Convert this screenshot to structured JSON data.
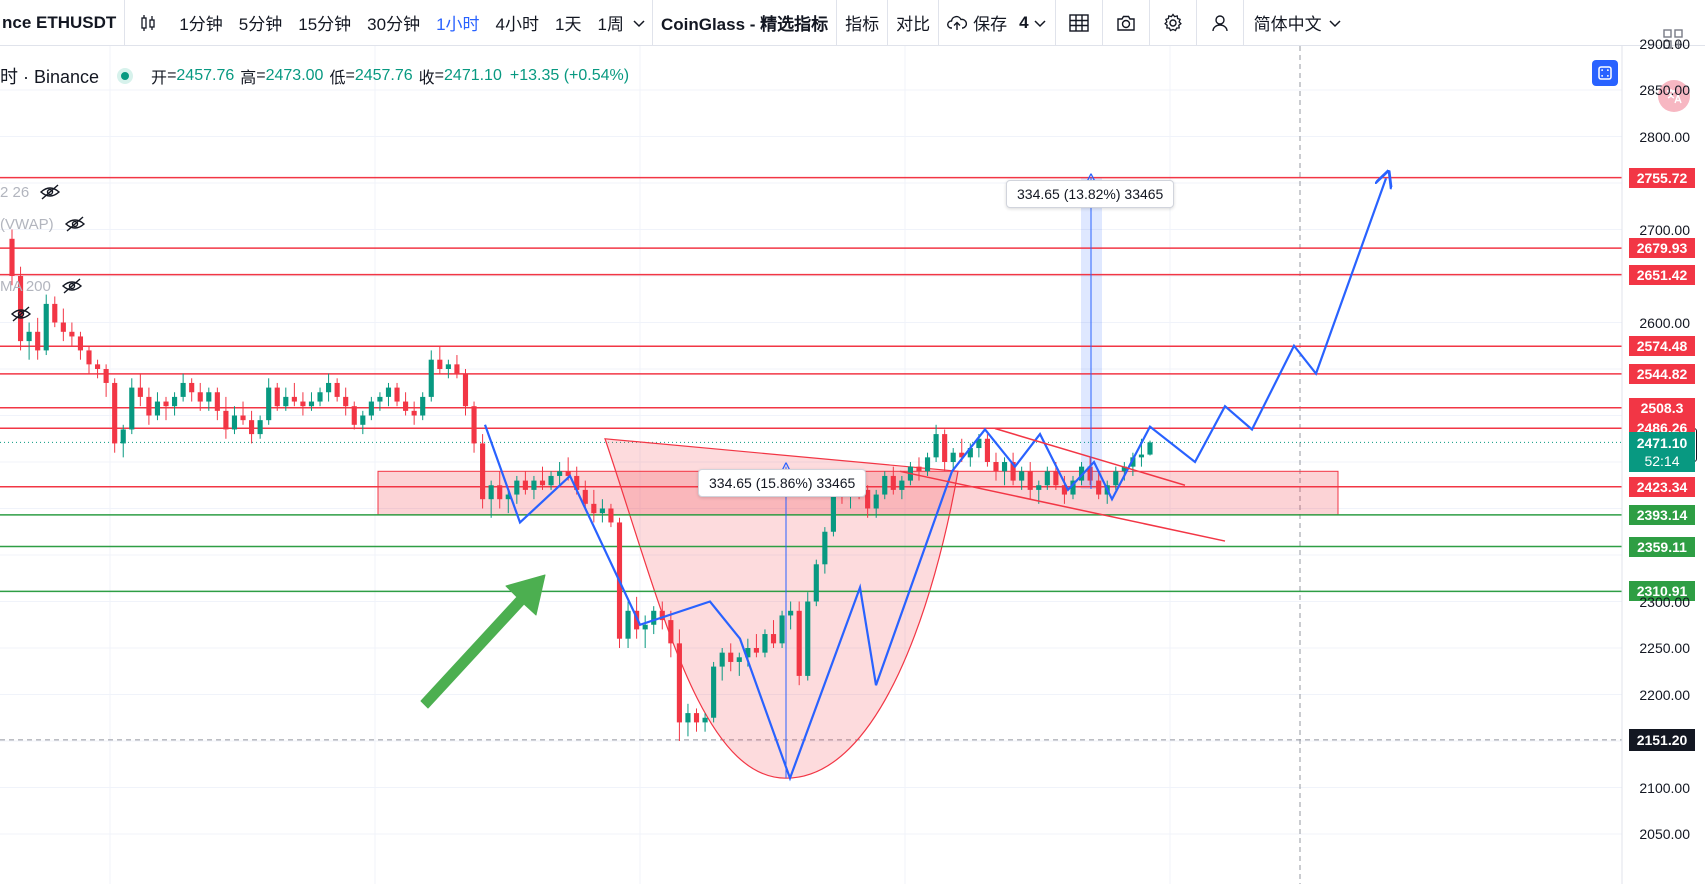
{
  "toolbar": {
    "symbol": "nce ETHUSDT",
    "intervals": [
      "1分钟",
      "5分钟",
      "15分钟",
      "30分钟",
      "1小时",
      "4小时",
      "1天",
      "1周"
    ],
    "active_interval": "1小时",
    "indicator_source": "CoinGlass - 精选指标",
    "indicators_label": "指标",
    "compare_label": "对比",
    "save_label": "保存",
    "layout_count": "4",
    "language": "简体中文"
  },
  "legend": {
    "title": "时 · Binance",
    "open_label": "开",
    "open": "2457.76",
    "high_label": "高",
    "high": "2473.00",
    "low_label": "低",
    "low": "2457.76",
    "close_label": "收",
    "close": "2471.10",
    "change": "+13.35 (+0.54%)"
  },
  "indicators": [
    {
      "label": "2 26"
    },
    {
      "label": "(VWAP)"
    },
    {
      "label": "MA 200"
    },
    {
      "label": ""
    }
  ],
  "colors": {
    "up": "#089981",
    "down": "#f23645",
    "drawing_blue": "#2962ff",
    "resistance_red": "#f23645",
    "support_green": "#2e9e44",
    "arrow_green": "#4caf50"
  },
  "chart_data": {
    "type": "candlestick",
    "symbol": "ETHUSDT",
    "exchange": "Binance",
    "interval": "1小时",
    "ylim": [
      2040,
      2915
    ],
    "y_ticks": [
      2050,
      2100,
      2150,
      2200,
      2250,
      2300,
      2350,
      2400,
      2450,
      2500,
      2550,
      2600,
      2650,
      2700,
      2750,
      2800,
      2850,
      2900
    ],
    "y_tick_labels": [
      "2050.00",
      "2100.00",
      "",
      "2200.00",
      "2250.00",
      "2300.00",
      "",
      "",
      "",
      "",
      "",
      "2600.00",
      "",
      "2700.00",
      "",
      "2800.00",
      "2850.00",
      "2900.00"
    ],
    "current_price": "2471.10",
    "countdown": "52:14",
    "crosshair_price": "2151.20",
    "horizontal_levels": [
      {
        "price": 2755.72,
        "label": "2755.72",
        "kind": "resistance"
      },
      {
        "price": 2679.93,
        "label": "2679.93",
        "kind": "resistance"
      },
      {
        "price": 2651.42,
        "label": "2651.42",
        "kind": "resistance"
      },
      {
        "price": 2574.48,
        "label": "2574.48",
        "kind": "resistance"
      },
      {
        "price": 2544.82,
        "label": "2544.82",
        "kind": "resistance"
      },
      {
        "price": 2508.3,
        "label": "2508.3",
        "kind": "resistance"
      },
      {
        "price": 2486.26,
        "label": "2486.26",
        "kind": "resistance"
      },
      {
        "price": 2423.34,
        "label": "2423.34",
        "kind": "resistance"
      },
      {
        "price": 2393.14,
        "label": "2393.14",
        "kind": "support"
      },
      {
        "price": 2359.11,
        "label": "2359.11",
        "kind": "support"
      },
      {
        "price": 2310.91,
        "label": "2310.91",
        "kind": "support"
      }
    ],
    "measurements": [
      {
        "text": "334.65 (15.86%) 33465"
      },
      {
        "text": "334.65 (13.82%) 33465"
      }
    ],
    "candles": [
      [
        2690,
        2700,
        2640,
        2650
      ],
      [
        2650,
        2660,
        2570,
        2580
      ],
      [
        2580,
        2600,
        2560,
        2590
      ],
      [
        2590,
        2605,
        2560,
        2570
      ],
      [
        2570,
        2630,
        2565,
        2620
      ],
      [
        2620,
        2628,
        2595,
        2600
      ],
      [
        2600,
        2615,
        2580,
        2590
      ],
      [
        2590,
        2600,
        2575,
        2585
      ],
      [
        2585,
        2590,
        2560,
        2570
      ],
      [
        2570,
        2575,
        2545,
        2555
      ],
      [
        2555,
        2560,
        2540,
        2550
      ],
      [
        2550,
        2555,
        2520,
        2535
      ],
      [
        2535,
        2540,
        2460,
        2470
      ],
      [
        2470,
        2490,
        2455,
        2485
      ],
      [
        2485,
        2540,
        2480,
        2530
      ],
      [
        2530,
        2545,
        2510,
        2520
      ],
      [
        2520,
        2530,
        2490,
        2500
      ],
      [
        2500,
        2525,
        2495,
        2515
      ],
      [
        2515,
        2520,
        2495,
        2510
      ],
      [
        2510,
        2525,
        2500,
        2520
      ],
      [
        2520,
        2545,
        2515,
        2535
      ],
      [
        2535,
        2540,
        2515,
        2525
      ],
      [
        2525,
        2535,
        2505,
        2515
      ],
      [
        2515,
        2530,
        2505,
        2525
      ],
      [
        2525,
        2530,
        2495,
        2505
      ],
      [
        2505,
        2520,
        2475,
        2485
      ],
      [
        2485,
        2510,
        2480,
        2500
      ],
      [
        2500,
        2515,
        2490,
        2495
      ],
      [
        2495,
        2505,
        2470,
        2480
      ],
      [
        2480,
        2500,
        2475,
        2495
      ],
      [
        2495,
        2540,
        2490,
        2530
      ],
      [
        2530,
        2535,
        2505,
        2510
      ],
      [
        2510,
        2530,
        2505,
        2520
      ],
      [
        2520,
        2535,
        2510,
        2515
      ],
      [
        2515,
        2525,
        2500,
        2510
      ],
      [
        2510,
        2525,
        2505,
        2515
      ],
      [
        2515,
        2530,
        2510,
        2525
      ],
      [
        2525,
        2545,
        2515,
        2535
      ],
      [
        2535,
        2540,
        2515,
        2520
      ],
      [
        2520,
        2530,
        2500,
        2510
      ],
      [
        2510,
        2515,
        2485,
        2490
      ],
      [
        2490,
        2505,
        2480,
        2500
      ],
      [
        2500,
        2520,
        2495,
        2515
      ],
      [
        2515,
        2525,
        2505,
        2520
      ],
      [
        2520,
        2535,
        2510,
        2530
      ],
      [
        2530,
        2535,
        2510,
        2515
      ],
      [
        2515,
        2525,
        2500,
        2505
      ],
      [
        2505,
        2515,
        2490,
        2500
      ],
      [
        2500,
        2525,
        2495,
        2520
      ],
      [
        2520,
        2570,
        2515,
        2560
      ],
      [
        2560,
        2575,
        2545,
        2550
      ],
      [
        2550,
        2560,
        2540,
        2555
      ],
      [
        2555,
        2565,
        2540,
        2545
      ],
      [
        2545,
        2550,
        2500,
        2510
      ],
      [
        2510,
        2515,
        2460,
        2470
      ],
      [
        2470,
        2480,
        2400,
        2410
      ],
      [
        2410,
        2430,
        2390,
        2425
      ],
      [
        2425,
        2440,
        2400,
        2410
      ],
      [
        2410,
        2420,
        2395,
        2415
      ],
      [
        2415,
        2435,
        2405,
        2430
      ],
      [
        2430,
        2440,
        2415,
        2420
      ],
      [
        2420,
        2435,
        2410,
        2430
      ],
      [
        2430,
        2445,
        2420,
        2425
      ],
      [
        2425,
        2440,
        2420,
        2435
      ],
      [
        2435,
        2450,
        2425,
        2440
      ],
      [
        2440,
        2455,
        2430,
        2435
      ],
      [
        2435,
        2445,
        2415,
        2420
      ],
      [
        2420,
        2430,
        2400,
        2405
      ],
      [
        2405,
        2420,
        2385,
        2395
      ],
      [
        2395,
        2410,
        2385,
        2400
      ],
      [
        2400,
        2405,
        2380,
        2385
      ],
      [
        2385,
        2390,
        2250,
        2260
      ],
      [
        2260,
        2300,
        2250,
        2290
      ],
      [
        2290,
        2305,
        2260,
        2270
      ],
      [
        2270,
        2285,
        2250,
        2275
      ],
      [
        2275,
        2295,
        2265,
        2290
      ],
      [
        2290,
        2300,
        2270,
        2280
      ],
      [
        2280,
        2290,
        2240,
        2255
      ],
      [
        2255,
        2270,
        2150,
        2170
      ],
      [
        2170,
        2190,
        2155,
        2180
      ],
      [
        2180,
        2185,
        2160,
        2170
      ],
      [
        2170,
        2180,
        2160,
        2175
      ],
      [
        2175,
        2235,
        2170,
        2230
      ],
      [
        2230,
        2250,
        2215,
        2245
      ],
      [
        2245,
        2255,
        2225,
        2235
      ],
      [
        2235,
        2245,
        2220,
        2240
      ],
      [
        2240,
        2260,
        2230,
        2250
      ],
      [
        2250,
        2265,
        2240,
        2245
      ],
      [
        2245,
        2270,
        2240,
        2265
      ],
      [
        2265,
        2280,
        2250,
        2255
      ],
      [
        2255,
        2290,
        2250,
        2285
      ],
      [
        2285,
        2300,
        2270,
        2290
      ],
      [
        2290,
        2300,
        2210,
        2220
      ],
      [
        2220,
        2310,
        2215,
        2300
      ],
      [
        2300,
        2345,
        2295,
        2340
      ],
      [
        2340,
        2380,
        2330,
        2375
      ],
      [
        2375,
        2440,
        2370,
        2430
      ],
      [
        2430,
        2440,
        2405,
        2415
      ],
      [
        2415,
        2430,
        2400,
        2425
      ],
      [
        2425,
        2440,
        2410,
        2420
      ],
      [
        2420,
        2425,
        2390,
        2400
      ],
      [
        2400,
        2420,
        2390,
        2415
      ],
      [
        2415,
        2440,
        2410,
        2435
      ],
      [
        2435,
        2445,
        2415,
        2420
      ],
      [
        2420,
        2435,
        2410,
        2430
      ],
      [
        2430,
        2450,
        2425,
        2445
      ],
      [
        2445,
        2455,
        2430,
        2440
      ],
      [
        2440,
        2460,
        2435,
        2455
      ],
      [
        2455,
        2490,
        2450,
        2480
      ],
      [
        2480,
        2485,
        2440,
        2450
      ],
      [
        2450,
        2465,
        2440,
        2460
      ],
      [
        2460,
        2475,
        2450,
        2455
      ],
      [
        2455,
        2470,
        2445,
        2465
      ],
      [
        2465,
        2480,
        2455,
        2475
      ],
      [
        2475,
        2480,
        2445,
        2450
      ],
      [
        2450,
        2460,
        2430,
        2440
      ],
      [
        2440,
        2455,
        2425,
        2450
      ],
      [
        2450,
        2460,
        2425,
        2430
      ],
      [
        2430,
        2445,
        2420,
        2440
      ],
      [
        2440,
        2450,
        2410,
        2420
      ],
      [
        2420,
        2430,
        2405,
        2425
      ],
      [
        2425,
        2445,
        2420,
        2440
      ],
      [
        2440,
        2450,
        2420,
        2425
      ],
      [
        2425,
        2435,
        2405,
        2415
      ],
      [
        2415,
        2435,
        2410,
        2430
      ],
      [
        2430,
        2450,
        2425,
        2445
      ],
      [
        2445,
        2455,
        2425,
        2430
      ],
      [
        2430,
        2440,
        2410,
        2415
      ],
      [
        2415,
        2430,
        2405,
        2425
      ],
      [
        2425,
        2445,
        2420,
        2440
      ],
      [
        2440,
        2450,
        2430,
        2445
      ],
      [
        2445,
        2460,
        2435,
        2455
      ],
      [
        2455,
        2475,
        2445,
        2458
      ],
      [
        2458,
        2473,
        2457,
        2471
      ]
    ]
  }
}
